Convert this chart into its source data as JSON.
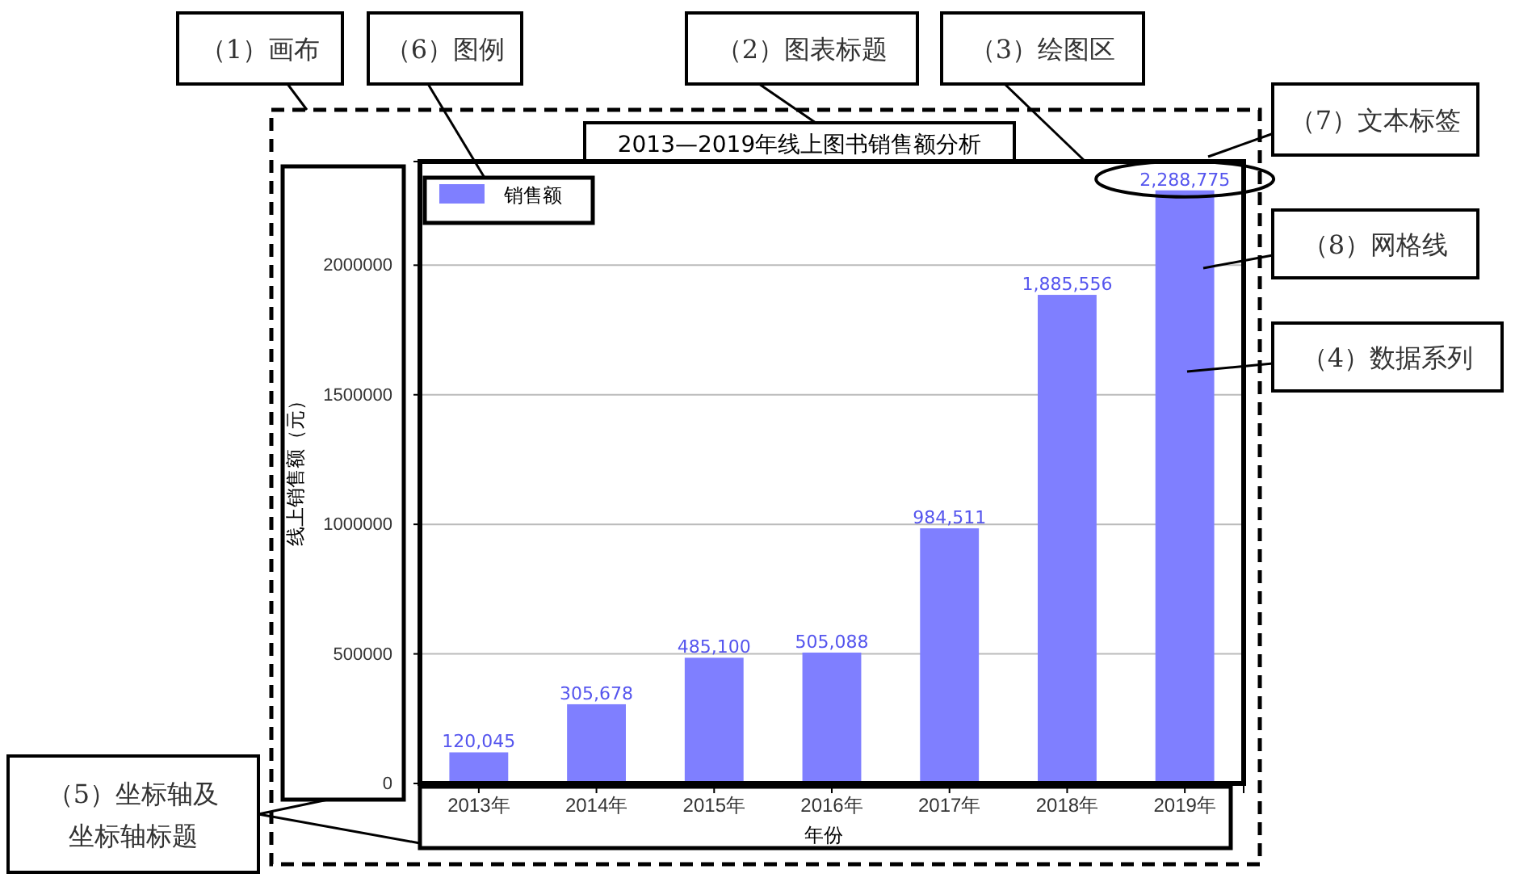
{
  "chart_data": {
    "type": "bar",
    "title": "2013—2019年线上图书销售额分析",
    "xlabel": "年份",
    "ylabel": "线上销售额（元）",
    "categories": [
      "2013年",
      "2014年",
      "2015年",
      "2016年",
      "2017年",
      "2018年",
      "2019年"
    ],
    "series": [
      {
        "name": "销售额",
        "color": "#7f7fff",
        "values": [
          120045,
          305678,
          485100,
          505088,
          984511,
          1885556,
          2288775
        ],
        "value_labels": [
          "120,045",
          "305,678",
          "485,100",
          "505,088",
          "984,511",
          "1,885,556",
          "2,288,775"
        ]
      }
    ],
    "ylim": [
      0,
      2400000
    ],
    "yticks": [
      0,
      500000,
      1000000,
      1500000,
      2000000
    ],
    "grid": "y",
    "legend": "top left",
    "annotations": [
      "（1）画布",
      "（6）图例",
      "（2）图表标题",
      "（3）绘图区",
      "（7）文本标签",
      "（8）网格线",
      "（4）数据系列",
      "（5）坐标轴及坐标轴标题"
    ]
  }
}
